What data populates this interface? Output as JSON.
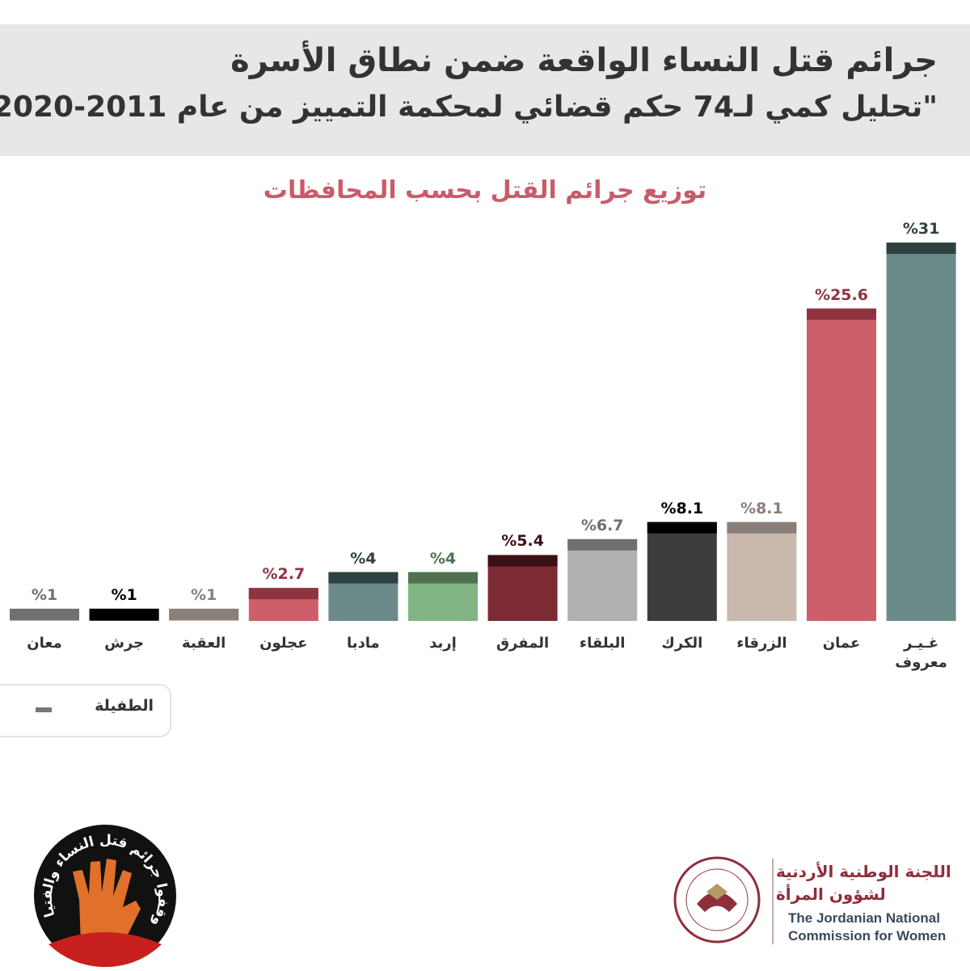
{
  "header": {
    "title": "جرائم قتل النساء الواقعة ضمن نطاق الأسرة",
    "subtitle": "\"تحليل كمي لـ74 حكم قضائي لمحكمة التمييز من عام 2011-2020\""
  },
  "chart_data": {
    "type": "bar",
    "title": "توزيع جرائم القتل بحسب المحافظات",
    "categories": [
      "معان",
      "جرش",
      "العقبة",
      "عجلون",
      "مادبا",
      "إربد",
      "المفرق",
      "البلقاء",
      "الكرك",
      "الزرقاء",
      "عمان",
      "غـيـر معروف"
    ],
    "values": [
      1,
      1,
      1,
      2.7,
      4,
      4,
      5.4,
      6.7,
      8.1,
      8.1,
      25.6,
      31
    ],
    "value_labels": [
      "%1",
      "%1",
      "%1",
      "%2.7",
      "%4",
      "%4",
      "%5.4",
      "%6.7",
      "%8.1",
      "%8.1",
      "%25.6",
      "%31"
    ],
    "colors": [
      "#b0b0b0",
      "#3d3d3d",
      "#c9b8ae",
      "#cd5f6a",
      "#6b8a8a",
      "#80b482",
      "#7c2a33",
      "#b0b0b0",
      "#3d3d3d",
      "#c9b8ae",
      "#cd5f6a",
      "#6b8a8a"
    ],
    "cap_colors": [
      "#707070",
      "#000000",
      "#8a7f78",
      "#8e3440",
      "#2f4040",
      "#4f7150",
      "#3a1015",
      "#707070",
      "#000000",
      "#8a7f78",
      "#8e3440",
      "#2f4040"
    ],
    "ylim": [
      0,
      31
    ],
    "legend": [
      {
        "name": "الطفيلة",
        "color": "#777777"
      }
    ]
  },
  "footer": {
    "campaign": "أوقفوا جرائم قتل النساء والفتيات",
    "org_ar_1": "اللجنة الوطنية الأردنية",
    "org_ar_2": "لشؤون المرأة",
    "org_en_1": "The Jordanian National",
    "org_en_2": "Commission for Women"
  }
}
